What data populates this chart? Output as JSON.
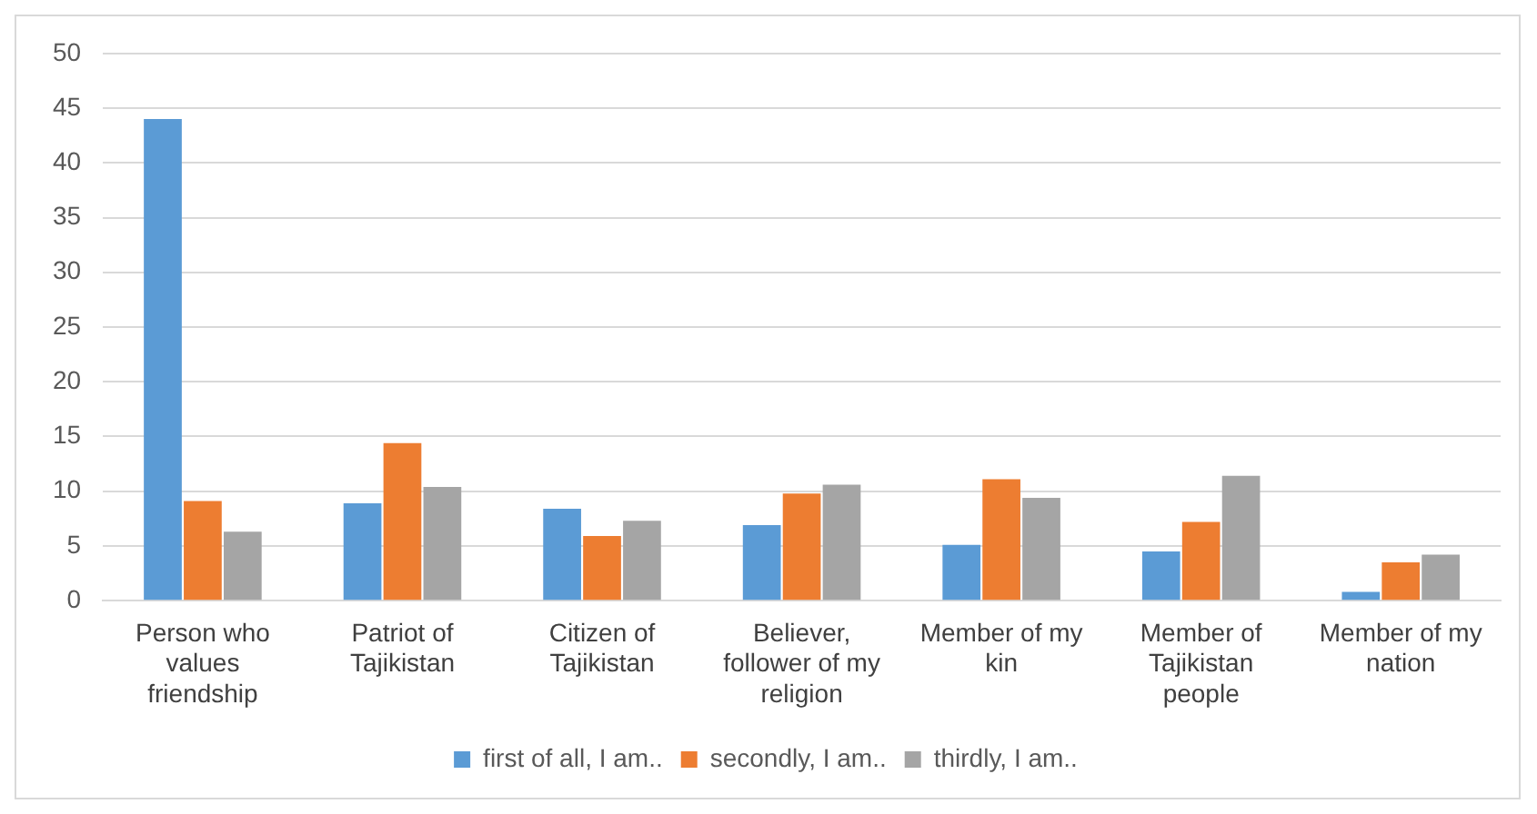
{
  "chart_data": {
    "type": "bar",
    "categories": [
      "Person who values friendship",
      "Patriot of Tajikistan",
      "Citizen of Tajikistan",
      "Believer, follower of my religion",
      "Member of my kin",
      "Member of Tajikistan people",
      "Member of my nation"
    ],
    "series": [
      {
        "name": "first of all, I am..",
        "color": "#5b9bd5",
        "values": [
          44.0,
          8.9,
          8.4,
          6.9,
          5.1,
          4.5,
          0.8
        ]
      },
      {
        "name": "secondly, I am..",
        "color": "#ed7d31",
        "values": [
          9.1,
          14.4,
          5.9,
          9.8,
          11.1,
          7.2,
          3.5
        ]
      },
      {
        "name": "thirdly, I am..",
        "color": "#a5a5a5",
        "values": [
          6.3,
          10.4,
          7.3,
          10.6,
          9.4,
          11.4,
          4.2
        ]
      }
    ],
    "ylim": [
      0,
      50
    ],
    "yticks": [
      0,
      5,
      10,
      15,
      20,
      25,
      30,
      35,
      40,
      45,
      50
    ],
    "grid": "y",
    "legend": "bottom"
  }
}
